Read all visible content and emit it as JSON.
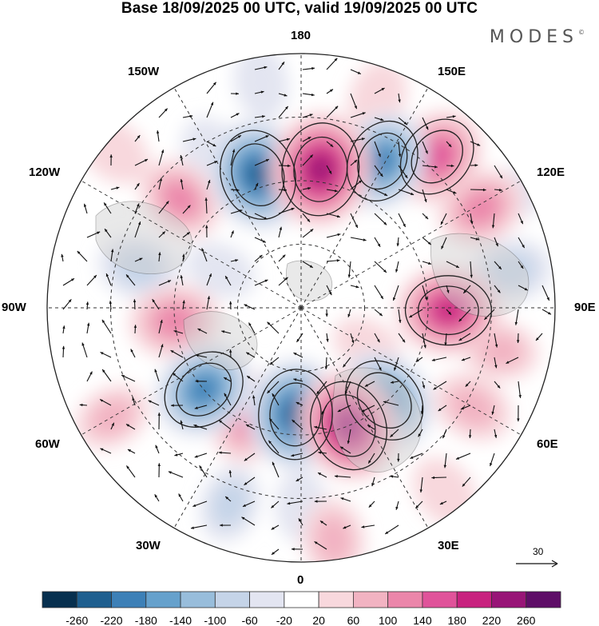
{
  "title": "Base 18/09/2025 00 UTC, valid 19/09/2025 00 UTC",
  "brand": {
    "name": "MODES",
    "mark": "©"
  },
  "longitude_labels": {
    "top": "180",
    "bottom": "0",
    "left": "90W",
    "right": "90E",
    "upper_left_1": "150W",
    "upper_left_2": "120W",
    "lower_left_1": "60W",
    "lower_left_2": "30W",
    "upper_right_1": "150E",
    "upper_right_2": "120E",
    "lower_right_1": "60E",
    "lower_right_2": "30E"
  },
  "reference_vector": {
    "value": "30"
  },
  "colorbar": {
    "colors": [
      "#08304f",
      "#1f5f8f",
      "#3d80b7",
      "#66a1cc",
      "#98bddb",
      "#c5d4e8",
      "#e3e5f1",
      "#ffffff",
      "#f8d8dd",
      "#f2b3c2",
      "#eb86aa",
      "#e0539a",
      "#c8237f",
      "#981577",
      "#5e0e67"
    ],
    "ticks": [
      "-260",
      "-220",
      "-180",
      "-140",
      "-100",
      "-60",
      "-20",
      "20",
      "60",
      "100",
      "140",
      "180",
      "220",
      "260"
    ]
  },
  "field_anomalies": [
    {
      "r": 0.81,
      "theta": 119,
      "value": 120
    },
    {
      "r": 0.8,
      "theta": 138,
      "value": 170
    },
    {
      "r": 0.66,
      "theta": 151,
      "value": -180
    },
    {
      "r": 0.55,
      "theta": 172,
      "value": 250
    },
    {
      "r": 0.55,
      "theta": 198,
      "value": -230
    },
    {
      "r": 0.64,
      "theta": 228,
      "value": 110
    },
    {
      "r": 0.66,
      "theta": 256,
      "value": -80
    },
    {
      "r": 0.5,
      "theta": 276,
      "value": 130
    },
    {
      "r": 0.5,
      "theta": 310,
      "value": -190
    },
    {
      "r": 0.48,
      "theta": 335,
      "value": 130
    },
    {
      "r": 0.42,
      "theta": 357,
      "value": -230
    },
    {
      "r": 0.5,
      "theta": 22,
      "value": 230
    },
    {
      "r": 0.49,
      "theta": 42,
      "value": -200
    },
    {
      "r": 0.58,
      "theta": 89,
      "value": 200
    },
    {
      "r": 0.52,
      "theta": 168,
      "value": 60
    },
    {
      "r": 0.84,
      "theta": 100,
      "value": -80
    },
    {
      "r": 0.8,
      "theta": 78,
      "value": 60
    },
    {
      "r": 0.78,
      "theta": 60,
      "value": 80
    },
    {
      "r": 0.92,
      "theta": 38,
      "value": 50
    },
    {
      "r": 0.92,
      "theta": 8,
      "value": 80
    },
    {
      "r": 0.82,
      "theta": 340,
      "value": -60
    },
    {
      "r": 0.78,
      "theta": 0,
      "value": -30
    },
    {
      "r": 0.86,
      "theta": 300,
      "value": 60
    },
    {
      "r": 0.7,
      "theta": 210,
      "value": -50
    },
    {
      "r": 0.9,
      "theta": 190,
      "value": -40
    },
    {
      "r": 0.88,
      "theta": 160,
      "value": 50
    },
    {
      "r": 0.96,
      "theta": 230,
      "value": 50
    },
    {
      "r": 0.95,
      "theta": 118,
      "value": -30
    },
    {
      "r": 0.35,
      "theta": 245,
      "value": -30
    },
    {
      "r": 0.3,
      "theta": 60,
      "value": 30
    }
  ]
}
